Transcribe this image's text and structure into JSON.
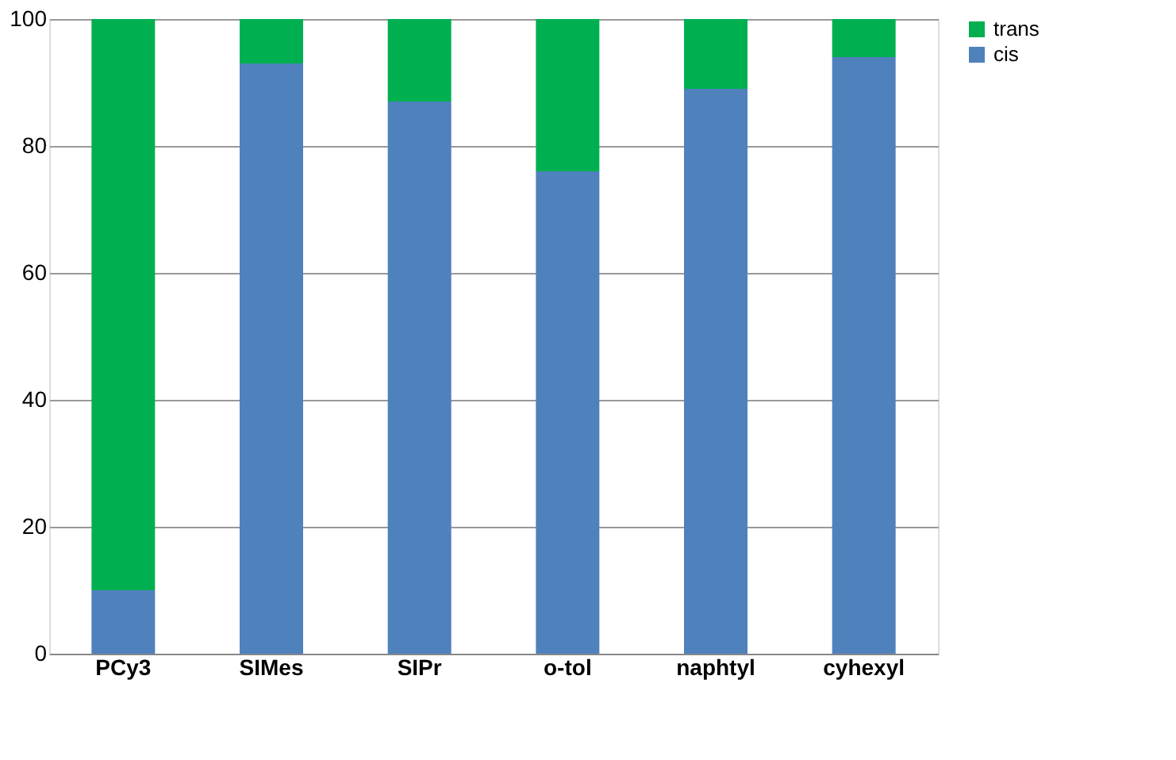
{
  "chart_data": {
    "type": "bar",
    "stacked": true,
    "categories": [
      "PCy3",
      "SIMes",
      "SIPr",
      "o-tol",
      "naphtyl",
      "cyhexyl"
    ],
    "series": [
      {
        "name": "cis",
        "color": "#4f81bd",
        "values": [
          10,
          93,
          87,
          76,
          89,
          94
        ]
      },
      {
        "name": "trans",
        "color": "#00b050",
        "values": [
          90,
          7,
          13,
          24,
          11,
          6
        ]
      }
    ],
    "ylim": [
      0,
      100
    ],
    "yticks": [
      0,
      20,
      40,
      60,
      80,
      100
    ],
    "grid": "y",
    "legend": "right"
  }
}
